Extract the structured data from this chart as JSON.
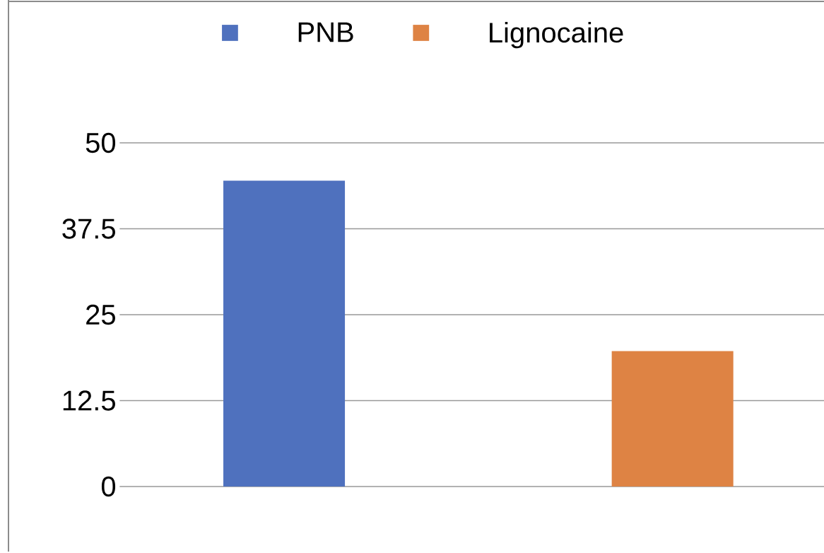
{
  "chart_data": {
    "type": "bar",
    "categories": [
      null,
      null
    ],
    "series": [
      {
        "name": "PNB",
        "color": "#4f71be",
        "values": [
          44.5,
          null
        ]
      },
      {
        "name": "Lignocaine",
        "color": "#de8344",
        "values": [
          null,
          19.7
        ]
      }
    ],
    "ylim": [
      0,
      50
    ],
    "yticks": [
      0,
      12.5,
      25,
      37.5,
      50
    ],
    "grid": "y",
    "legend": "top"
  }
}
